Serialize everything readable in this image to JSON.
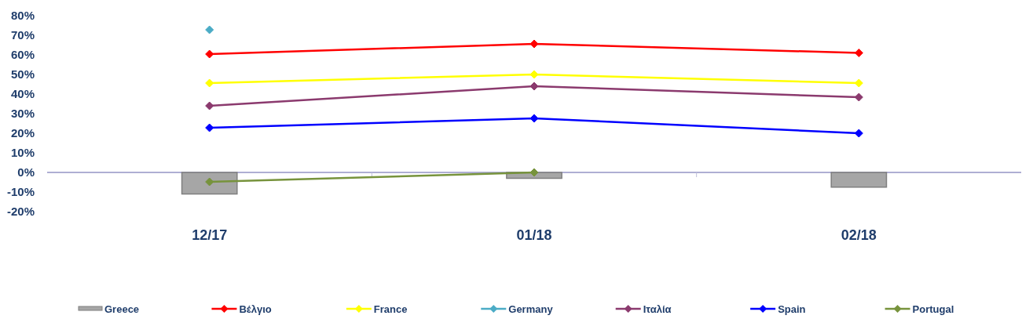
{
  "chart_data": {
    "type": "line",
    "categories": [
      "12/17",
      "01/18",
      "02/18"
    ],
    "series": [
      {
        "name": "Greece",
        "type": "bar",
        "color": "#a6a6a6",
        "values": [
          -11,
          -3,
          -7.5
        ]
      },
      {
        "name": "Βέλγιο",
        "color": "#ff0000",
        "values": [
          60.4,
          65.6,
          61
        ]
      },
      {
        "name": "France",
        "color": "#ffff00",
        "values": [
          45.6,
          50,
          45.6
        ]
      },
      {
        "name": "Germany",
        "color": "#4bacc6",
        "values": [
          72.8,
          null,
          null
        ]
      },
      {
        "name": "Ιταλία",
        "color": "#8b3a6e",
        "values": [
          34,
          44,
          38.4
        ]
      },
      {
        "name": "Spain",
        "color": "#0000ff",
        "values": [
          22.8,
          27.6,
          20
        ]
      },
      {
        "name": "Portugal",
        "color": "#77933c",
        "values": [
          -4.8,
          0,
          null
        ]
      }
    ],
    "ylim": [
      -20,
      80
    ],
    "yticks": [
      {
        "value": -20,
        "label": "-20%"
      },
      {
        "value": -10,
        "label": "-10%"
      },
      {
        "value": 0,
        "label": "0%"
      },
      {
        "value": 10,
        "label": "10%"
      },
      {
        "value": 20,
        "label": "20%"
      },
      {
        "value": 30,
        "label": "30%"
      },
      {
        "value": 40,
        "label": "40%"
      },
      {
        "value": 50,
        "label": "50%"
      },
      {
        "value": 60,
        "label": "60%"
      },
      {
        "value": 70,
        "label": "70%"
      },
      {
        "value": 80,
        "label": "80%"
      }
    ],
    "ref_lines": [
      {
        "axis": "y",
        "value": 0,
        "color": "#5e5ea8"
      }
    ],
    "grid": false,
    "legend": "bottom",
    "marker": "diamond",
    "line_style": "solid"
  }
}
